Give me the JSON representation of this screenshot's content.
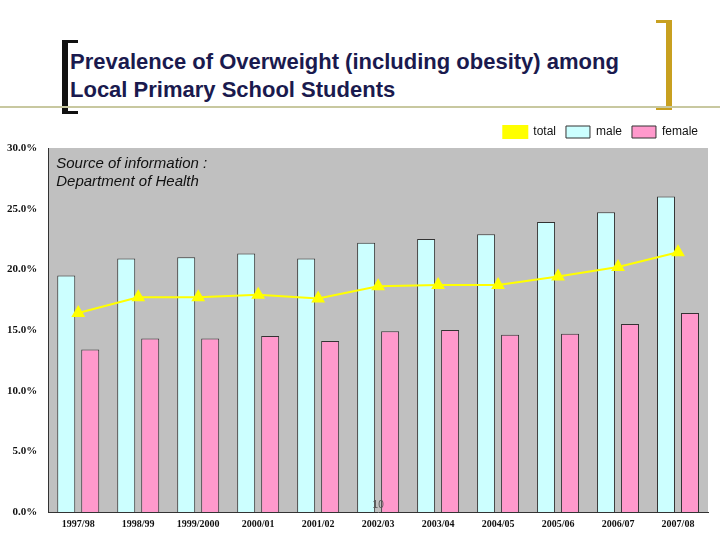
{
  "chart_data": {
    "type": "bar",
    "title": "Prevalence of Overweight (including obesity) among Local Primary School Students",
    "annotations": [
      "Source of information : Department of Health",
      "10"
    ],
    "categories": [
      "1997/98",
      "1998/99",
      "1999/2000",
      "2000/01",
      "2001/02",
      "2002/03",
      "2003/04",
      "2004/05",
      "2005/06",
      "2006/07",
      "2007/08"
    ],
    "series": [
      {
        "name": "male",
        "color": "#ccffff",
        "values": [
          19.5,
          20.9,
          21.0,
          21.3,
          20.9,
          22.2,
          22.5,
          22.9,
          23.9,
          24.7,
          26.0
        ]
      },
      {
        "name": "female",
        "color": "#ff99cc",
        "values": [
          13.4,
          14.3,
          14.3,
          14.5,
          14.1,
          14.9,
          15.0,
          14.6,
          14.7,
          15.5,
          16.4
        ]
      },
      {
        "name": "total",
        "color": "#ffff00",
        "type": "line",
        "marker": "triangle",
        "values": [
          16.4,
          17.7,
          17.7,
          17.9,
          17.6,
          18.6,
          18.7,
          18.7,
          19.4,
          20.2,
          21.4
        ]
      }
    ],
    "ylim": [
      0,
      30
    ],
    "yticks": [
      {
        "value": 0,
        "label": "0.0%"
      },
      {
        "value": 5,
        "label": "5.0%"
      },
      {
        "value": 10,
        "label": "10.0%"
      },
      {
        "value": 15,
        "label": "15.0%"
      },
      {
        "value": 20,
        "label": "20.0%"
      },
      {
        "value": 25,
        "label": "25.0%"
      },
      {
        "value": 30,
        "label": "30.0%"
      }
    ],
    "grid": false,
    "legend": "top-right",
    "data_labels": false
  }
}
